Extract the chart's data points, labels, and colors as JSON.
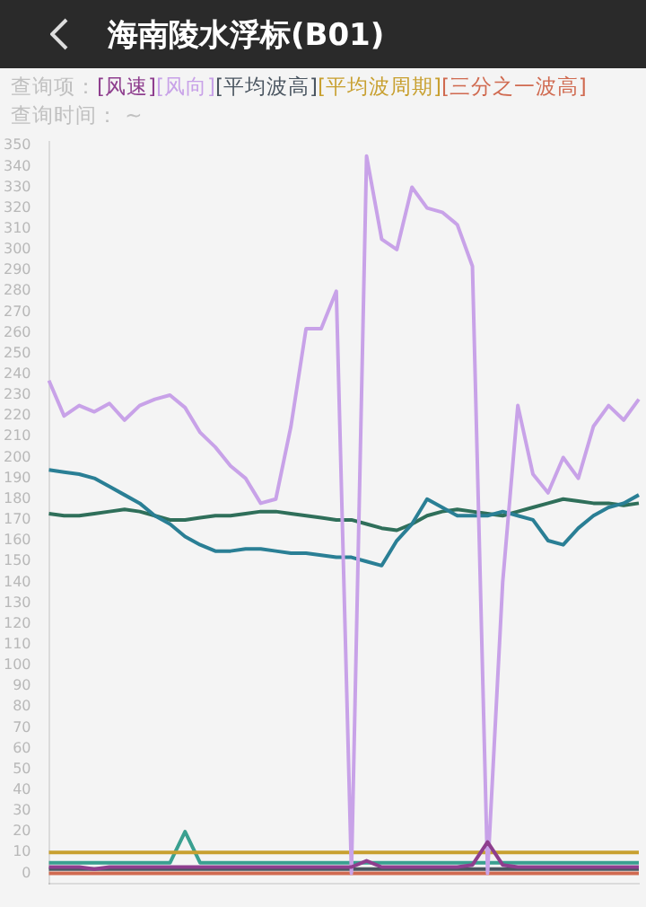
{
  "chart_data": {
    "type": "line",
    "title": "海南陵水浮标(B01)",
    "legend_title": "查询项：",
    "annotations": [
      "查询时间： ~"
    ],
    "categories": [
      null,
      null,
      null,
      null,
      null,
      null,
      null,
      null,
      null,
      null,
      null,
      null,
      null,
      null,
      null,
      null,
      null,
      null,
      null,
      null,
      null,
      null,
      null,
      null,
      null,
      null,
      null,
      null,
      null,
      null,
      null,
      null,
      null,
      null,
      null,
      null,
      null,
      null,
      null,
      null
    ],
    "series": [
      {
        "name": "[风速]",
        "color": "#8e3e8e",
        "values": [
          3,
          3,
          3,
          2,
          3,
          3,
          3,
          3,
          3,
          3,
          3,
          3,
          3,
          3,
          3,
          3,
          3,
          3,
          3,
          3,
          3,
          6,
          3,
          3,
          3,
          3,
          3,
          3,
          4,
          15,
          4,
          3,
          3,
          3,
          3,
          3,
          3,
          3,
          3,
          3
        ]
      },
      {
        "name": "[风向]",
        "color": "#c8a2e8",
        "values": [
          237,
          220,
          225,
          222,
          226,
          218,
          225,
          228,
          230,
          224,
          212,
          205,
          196,
          190,
          178,
          180,
          215,
          262,
          262,
          280,
          0,
          345,
          305,
          300,
          330,
          320,
          318,
          312,
          292,
          0,
          140,
          225,
          192,
          183,
          200,
          190,
          215,
          225,
          218,
          228
        ]
      },
      {
        "name": "[平均波高]",
        "color": "#4a5560",
        "values": [
          2,
          2,
          2,
          2,
          2,
          2,
          2,
          2,
          2,
          2,
          2,
          2,
          2,
          2,
          2,
          2,
          2,
          2,
          2,
          2,
          2,
          2,
          2,
          2,
          2,
          2,
          2,
          2,
          2,
          2,
          2,
          2,
          2,
          2,
          2,
          2,
          2,
          2,
          2,
          2
        ]
      },
      {
        "name": "[平均波周期]",
        "color": "#c8a030",
        "values": [
          10,
          10,
          10,
          10,
          10,
          10,
          10,
          10,
          10,
          10,
          10,
          10,
          10,
          10,
          10,
          10,
          10,
          10,
          10,
          10,
          10,
          10,
          10,
          10,
          10,
          10,
          10,
          10,
          10,
          10,
          10,
          10,
          10,
          10,
          10,
          10,
          10,
          10,
          10,
          10
        ]
      },
      {
        "name": "[三分之一波高]",
        "color": "#d06a50",
        "values": [
          0,
          0,
          0,
          0,
          0,
          0,
          0,
          0,
          0,
          0,
          0,
          0,
          0,
          0,
          0,
          0,
          0,
          0,
          0,
          0,
          0,
          0,
          0,
          0,
          0,
          0,
          0,
          0,
          0,
          0,
          0,
          0,
          0,
          0,
          0,
          0,
          0,
          0,
          0,
          0
        ]
      },
      {
        "color": "#3aa090",
        "values": [
          5,
          5,
          5,
          5,
          5,
          5,
          5,
          5,
          5,
          20,
          5,
          5,
          5,
          5,
          5,
          5,
          5,
          5,
          5,
          5,
          5,
          5,
          5,
          5,
          5,
          5,
          5,
          5,
          5,
          5,
          5,
          5,
          5,
          5,
          5,
          5,
          5,
          5,
          5,
          5
        ]
      },
      {
        "color": "#2a7f95",
        "values": [
          194,
          193,
          192,
          190,
          186,
          182,
          178,
          172,
          168,
          162,
          158,
          155,
          155,
          156,
          156,
          155,
          154,
          154,
          153,
          152,
          152,
          150,
          148,
          160,
          168,
          180,
          176,
          172,
          172,
          172,
          174,
          172,
          170,
          160,
          158,
          166,
          172,
          176,
          178,
          182
        ]
      },
      {
        "color": "#2f6f5a",
        "values": [
          173,
          172,
          172,
          173,
          174,
          175,
          174,
          172,
          170,
          170,
          171,
          172,
          172,
          173,
          174,
          174,
          173,
          172,
          171,
          170,
          170,
          168,
          166,
          165,
          168,
          172,
          174,
          175,
          174,
          173,
          172,
          174,
          176,
          178,
          180,
          179,
          178,
          178,
          177,
          178
        ]
      }
    ],
    "ylim": [
      -5,
      352
    ],
    "yticks": [
      0,
      10,
      20,
      30,
      40,
      50,
      60,
      70,
      80,
      90,
      100,
      110,
      120,
      130,
      140,
      150,
      160,
      170,
      180,
      190,
      200,
      210,
      220,
      230,
      240,
      250,
      260,
      270,
      280,
      290,
      300,
      310,
      320,
      330,
      340,
      350
    ],
    "tick_labels": "y",
    "legend": "top left",
    "marker": "none",
    "line_style": "solid"
  }
}
